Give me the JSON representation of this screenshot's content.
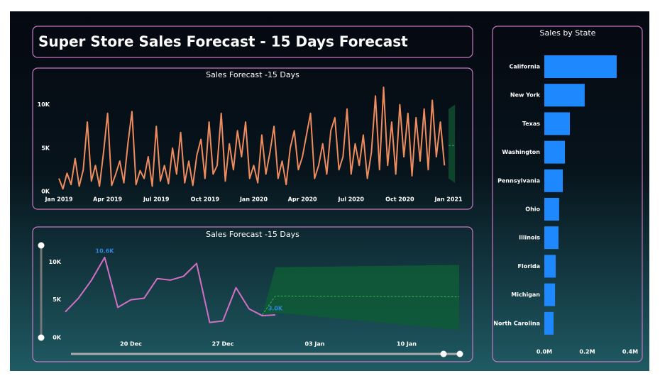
{
  "title": "Super Store Sales Forecast - 15 Days Forecast",
  "chart_data": [
    {
      "type": "line",
      "title": "Sales Forecast -15 Days",
      "x": [
        0,
        0.25,
        0.5,
        0.75,
        1,
        1.25,
        1.5,
        1.75,
        2,
        2.25,
        2.5,
        2.75,
        3,
        3.25,
        3.5,
        3.75,
        4,
        4.25,
        4.5,
        4.75,
        5,
        5.25,
        5.5,
        5.75,
        6,
        6.25,
        6.5,
        6.75,
        7,
        7.25,
        7.5,
        7.75,
        8,
        8.25,
        8.5,
        8.75,
        9,
        9.25,
        9.5,
        9.75,
        10,
        10.25,
        10.5,
        10.75,
        11,
        11.25,
        11.5,
        11.75,
        12,
        12.25,
        12.5,
        12.75,
        13,
        13.25,
        13.5,
        13.75,
        14,
        14.25,
        14.5,
        14.75,
        15,
        15.25,
        15.5,
        15.75,
        16,
        16.25,
        16.5,
        16.75,
        17,
        17.25,
        17.5,
        17.75,
        18,
        18.25,
        18.5,
        18.75,
        19,
        19.25,
        19.5,
        19.75,
        20,
        20.25,
        20.5,
        20.75,
        21,
        21.25,
        21.5,
        21.75,
        22,
        22.25,
        22.5,
        22.75,
        23,
        23.25,
        23.5,
        23.75
      ],
      "series": [
        {
          "color": "#ee8c5e",
          "values": [
            1500,
            300,
            2100,
            800,
            3800,
            600,
            2500,
            8000,
            1200,
            3000,
            600,
            4500,
            9000,
            700,
            2000,
            3500,
            1000,
            5500,
            9200,
            800,
            2400,
            1500,
            4000,
            600,
            7500,
            1200,
            3000,
            900,
            5000,
            2000,
            6800,
            1000,
            3500,
            700,
            4200,
            6000,
            1500,
            8000,
            2000,
            3000,
            9000,
            1200,
            5500,
            2500,
            7000,
            4000,
            8000,
            1500,
            3000,
            1000,
            6500,
            2000,
            4500,
            7500,
            1500,
            3500,
            800,
            5000,
            7000,
            2500,
            4000,
            6500,
            9000,
            1500,
            3000,
            5500,
            2000,
            7000,
            8500,
            2500,
            4000,
            9500,
            2000,
            5500,
            3000,
            6500,
            1500,
            4500,
            11000,
            2500,
            12000,
            3000,
            8000,
            2000,
            10000,
            4000,
            9000,
            1800,
            8500,
            3500,
            9500,
            2500,
            10500,
            4000,
            8000,
            3000
          ]
        }
      ],
      "forecast": {
        "color": "#0e4a2e",
        "x": [
          24,
          24.4
        ],
        "upper": [
          9500,
          10000
        ],
        "lower": [
          1500,
          1000
        ],
        "values": [
          5300,
          5300
        ]
      },
      "xlim": [
        0,
        24
      ],
      "xticks": [
        {
          "value": 0,
          "label": "Jan 2019"
        },
        {
          "value": 3,
          "label": "Apr 2019"
        },
        {
          "value": 6,
          "label": "Jul 2019"
        },
        {
          "value": 9,
          "label": "Oct 2019"
        },
        {
          "value": 12,
          "label": "Jan 2020"
        },
        {
          "value": 15,
          "label": "Apr 2020"
        },
        {
          "value": 18,
          "label": "Jul 2020"
        },
        {
          "value": 21,
          "label": "Oct 2020"
        },
        {
          "value": 24,
          "label": "Jan 2021"
        }
      ],
      "ylim": [
        0,
        12000
      ],
      "yticks": [
        {
          "value": 0,
          "label": "0K"
        },
        {
          "value": 5000,
          "label": "5K"
        },
        {
          "value": 10000,
          "label": "10K"
        }
      ]
    },
    {
      "type": "line",
      "title": "Sales Forecast -15 Days",
      "x": [
        -5,
        -4,
        -3,
        -2,
        -1,
        0,
        1,
        2,
        3,
        4,
        5,
        6,
        7,
        8,
        9,
        10,
        11
      ],
      "series": [
        {
          "color": "#d470c4",
          "values": [
            3400,
            5200,
            7600,
            10600,
            4000,
            5000,
            5200,
            7800,
            7600,
            8100,
            9800,
            2000,
            2200,
            6600,
            3800,
            2900,
            3000
          ],
          "value_labels": [
            null,
            null,
            null,
            "10.6K",
            null,
            null,
            null,
            null,
            null,
            null,
            null,
            null,
            null,
            null,
            null,
            null,
            "3.0K"
          ]
        }
      ],
      "forecast": {
        "color": "#0f5a38",
        "x": [
          10,
          11,
          25
        ],
        "upper": [
          3000,
          9300,
          9600
        ],
        "lower": [
          3000,
          3300,
          1000
        ],
        "values": [
          3000,
          5500,
          5400
        ]
      },
      "xlim": [
        -5,
        25
      ],
      "xticks": [
        {
          "value": 0,
          "label": "20 Dec"
        },
        {
          "value": 7,
          "label": "27 Dec"
        },
        {
          "value": 14,
          "label": "03 Jan"
        },
        {
          "value": 21,
          "label": "10 Jan"
        }
      ],
      "ylim": [
        0,
        12000
      ],
      "yticks": [
        {
          "value": 0,
          "label": "0K"
        },
        {
          "value": 5000,
          "label": "5K"
        },
        {
          "value": 10000,
          "label": "10K"
        }
      ]
    },
    {
      "type": "bar",
      "orientation": "horizontal",
      "title": "Sales by State",
      "color": "#1e88ff",
      "categories": [
        "California",
        "New York",
        "Texas",
        "Washington",
        "Pennsylvania",
        "Ohio",
        "Illinois",
        "Florida",
        "Michigan",
        "North Carolina"
      ],
      "values": [
        337000,
        188000,
        119000,
        96000,
        86000,
        69000,
        66000,
        53000,
        50000,
        43000
      ],
      "xlim": [
        0,
        400000
      ],
      "xticks": [
        {
          "value": 0,
          "label": "0.0M"
        },
        {
          "value": 200000,
          "label": "0.2M"
        },
        {
          "value": 400000,
          "label": "0.4M"
        }
      ]
    }
  ]
}
